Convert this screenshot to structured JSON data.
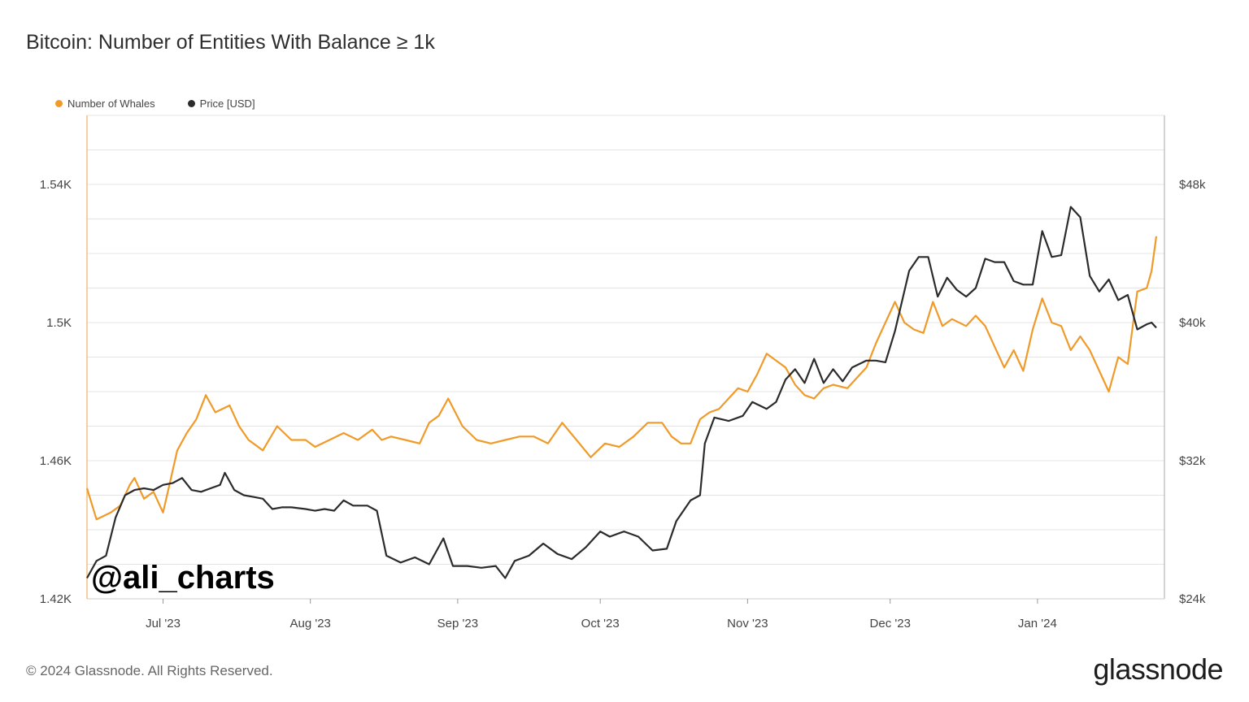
{
  "chart_data": {
    "type": "line",
    "title": "Bitcoin: Number of Entities With Balance ≥ 1k",
    "legend": {
      "placement": "top-left"
    },
    "grid": true,
    "x_tick_labels": [
      "Jul '23",
      "Aug '23",
      "Sep '23",
      "Oct '23",
      "Nov '23",
      "Dec '23",
      "Jan '24"
    ],
    "x_tick_dates": [
      "2023-07-01",
      "2023-08-01",
      "2023-09-01",
      "2023-10-01",
      "2023-11-01",
      "2023-12-01",
      "2024-01-01"
    ],
    "x_range": [
      "2023-06-15",
      "2024-01-26"
    ],
    "y_left": {
      "ticks": [
        "1.42K",
        "1.46K",
        "1.5K",
        "1.54K"
      ],
      "tick_values": [
        1420,
        1460,
        1500,
        1540
      ],
      "range": [
        1420,
        1560
      ]
    },
    "y_right": {
      "ticks": [
        "$24k",
        "$32k",
        "$40k",
        "$48k"
      ],
      "tick_values": [
        24000,
        32000,
        40000,
        48000
      ],
      "range": [
        24000,
        52000
      ]
    },
    "series": [
      {
        "name": "Number of Whales",
        "axis": "left",
        "color": "#f09a29",
        "points": [
          [
            "2023-06-15",
            1452
          ],
          [
            "2023-06-17",
            1443
          ],
          [
            "2023-06-20",
            1445
          ],
          [
            "2023-06-22",
            1447
          ],
          [
            "2023-06-24",
            1453
          ],
          [
            "2023-06-25",
            1455
          ],
          [
            "2023-06-27",
            1449
          ],
          [
            "2023-06-29",
            1451
          ],
          [
            "2023-07-01",
            1445
          ],
          [
            "2023-07-02",
            1451
          ],
          [
            "2023-07-04",
            1463
          ],
          [
            "2023-07-06",
            1468
          ],
          [
            "2023-07-08",
            1472
          ],
          [
            "2023-07-10",
            1479
          ],
          [
            "2023-07-12",
            1474
          ],
          [
            "2023-07-15",
            1476
          ],
          [
            "2023-07-17",
            1470
          ],
          [
            "2023-07-19",
            1466
          ],
          [
            "2023-07-22",
            1463
          ],
          [
            "2023-07-25",
            1470
          ],
          [
            "2023-07-28",
            1466
          ],
          [
            "2023-07-31",
            1466
          ],
          [
            "2023-08-02",
            1464
          ],
          [
            "2023-08-05",
            1466
          ],
          [
            "2023-08-08",
            1468
          ],
          [
            "2023-08-11",
            1466
          ],
          [
            "2023-08-14",
            1469
          ],
          [
            "2023-08-16",
            1466
          ],
          [
            "2023-08-18",
            1467
          ],
          [
            "2023-08-21",
            1466
          ],
          [
            "2023-08-24",
            1465
          ],
          [
            "2023-08-26",
            1471
          ],
          [
            "2023-08-28",
            1473
          ],
          [
            "2023-08-30",
            1478
          ],
          [
            "2023-09-02",
            1470
          ],
          [
            "2023-09-05",
            1466
          ],
          [
            "2023-09-08",
            1465
          ],
          [
            "2023-09-11",
            1466
          ],
          [
            "2023-09-14",
            1467
          ],
          [
            "2023-09-17",
            1467
          ],
          [
            "2023-09-20",
            1465
          ],
          [
            "2023-09-23",
            1471
          ],
          [
            "2023-09-26",
            1466
          ],
          [
            "2023-09-29",
            1461
          ],
          [
            "2023-10-02",
            1465
          ],
          [
            "2023-10-05",
            1464
          ],
          [
            "2023-10-08",
            1467
          ],
          [
            "2023-10-11",
            1471
          ],
          [
            "2023-10-14",
            1471
          ],
          [
            "2023-10-16",
            1467
          ],
          [
            "2023-10-18",
            1465
          ],
          [
            "2023-10-20",
            1465
          ],
          [
            "2023-10-22",
            1472
          ],
          [
            "2023-10-24",
            1474
          ],
          [
            "2023-10-26",
            1475
          ],
          [
            "2023-10-28",
            1478
          ],
          [
            "2023-10-30",
            1481
          ],
          [
            "2023-11-01",
            1480
          ],
          [
            "2023-11-03",
            1485
          ],
          [
            "2023-11-05",
            1491
          ],
          [
            "2023-11-07",
            1489
          ],
          [
            "2023-11-09",
            1487
          ],
          [
            "2023-11-11",
            1482
          ],
          [
            "2023-11-13",
            1479
          ],
          [
            "2023-11-15",
            1478
          ],
          [
            "2023-11-17",
            1481
          ],
          [
            "2023-11-19",
            1482
          ],
          [
            "2023-11-22",
            1481
          ],
          [
            "2023-11-24",
            1484
          ],
          [
            "2023-11-26",
            1487
          ],
          [
            "2023-11-28",
            1494
          ],
          [
            "2023-11-30",
            1500
          ],
          [
            "2023-12-02",
            1506
          ],
          [
            "2023-12-04",
            1500
          ],
          [
            "2023-12-06",
            1498
          ],
          [
            "2023-12-08",
            1497
          ],
          [
            "2023-12-10",
            1506
          ],
          [
            "2023-12-12",
            1499
          ],
          [
            "2023-12-14",
            1501
          ],
          [
            "2023-12-17",
            1499
          ],
          [
            "2023-12-19",
            1502
          ],
          [
            "2023-12-21",
            1499
          ],
          [
            "2023-12-23",
            1493
          ],
          [
            "2023-12-25",
            1487
          ],
          [
            "2023-12-27",
            1492
          ],
          [
            "2023-12-29",
            1486
          ],
          [
            "2023-12-31",
            1498
          ],
          [
            "2024-01-02",
            1507
          ],
          [
            "2024-01-04",
            1500
          ],
          [
            "2024-01-06",
            1499
          ],
          [
            "2024-01-08",
            1492
          ],
          [
            "2024-01-10",
            1496
          ],
          [
            "2024-01-12",
            1492
          ],
          [
            "2024-01-14",
            1486
          ],
          [
            "2024-01-16",
            1480
          ],
          [
            "2024-01-18",
            1490
          ],
          [
            "2024-01-20",
            1488
          ],
          [
            "2024-01-22",
            1509
          ],
          [
            "2024-01-24",
            1510
          ],
          [
            "2024-01-25",
            1515
          ],
          [
            "2024-01-26",
            1525
          ]
        ]
      },
      {
        "name": "Price [USD]",
        "axis": "right",
        "color": "#2b2b2b",
        "points": [
          [
            "2023-06-15",
            25200
          ],
          [
            "2023-06-17",
            26200
          ],
          [
            "2023-06-19",
            26500
          ],
          [
            "2023-06-21",
            28700
          ],
          [
            "2023-06-23",
            30000
          ],
          [
            "2023-06-25",
            30300
          ],
          [
            "2023-06-27",
            30400
          ],
          [
            "2023-06-29",
            30300
          ],
          [
            "2023-07-01",
            30600
          ],
          [
            "2023-07-03",
            30700
          ],
          [
            "2023-07-05",
            31000
          ],
          [
            "2023-07-07",
            30300
          ],
          [
            "2023-07-09",
            30200
          ],
          [
            "2023-07-11",
            30400
          ],
          [
            "2023-07-13",
            30600
          ],
          [
            "2023-07-14",
            31300
          ],
          [
            "2023-07-16",
            30300
          ],
          [
            "2023-07-18",
            30000
          ],
          [
            "2023-07-20",
            29900
          ],
          [
            "2023-07-22",
            29800
          ],
          [
            "2023-07-24",
            29200
          ],
          [
            "2023-07-26",
            29300
          ],
          [
            "2023-07-28",
            29300
          ],
          [
            "2023-07-31",
            29200
          ],
          [
            "2023-08-02",
            29100
          ],
          [
            "2023-08-04",
            29200
          ],
          [
            "2023-08-06",
            29100
          ],
          [
            "2023-08-08",
            29700
          ],
          [
            "2023-08-10",
            29400
          ],
          [
            "2023-08-13",
            29400
          ],
          [
            "2023-08-15",
            29100
          ],
          [
            "2023-08-17",
            26500
          ],
          [
            "2023-08-20",
            26100
          ],
          [
            "2023-08-23",
            26400
          ],
          [
            "2023-08-26",
            26000
          ],
          [
            "2023-08-29",
            27500
          ],
          [
            "2023-08-31",
            25900
          ],
          [
            "2023-09-03",
            25900
          ],
          [
            "2023-09-06",
            25800
          ],
          [
            "2023-09-09",
            25900
          ],
          [
            "2023-09-11",
            25200
          ],
          [
            "2023-09-13",
            26200
          ],
          [
            "2023-09-16",
            26500
          ],
          [
            "2023-09-19",
            27200
          ],
          [
            "2023-09-22",
            26600
          ],
          [
            "2023-09-25",
            26300
          ],
          [
            "2023-09-28",
            27000
          ],
          [
            "2023-10-01",
            27900
          ],
          [
            "2023-10-03",
            27600
          ],
          [
            "2023-10-06",
            27900
          ],
          [
            "2023-10-09",
            27600
          ],
          [
            "2023-10-12",
            26800
          ],
          [
            "2023-10-15",
            26900
          ],
          [
            "2023-10-17",
            28500
          ],
          [
            "2023-10-20",
            29700
          ],
          [
            "2023-10-22",
            30000
          ],
          [
            "2023-10-23",
            33000
          ],
          [
            "2023-10-25",
            34500
          ],
          [
            "2023-10-28",
            34300
          ],
          [
            "2023-10-31",
            34600
          ],
          [
            "2023-11-02",
            35400
          ],
          [
            "2023-11-05",
            35000
          ],
          [
            "2023-11-07",
            35400
          ],
          [
            "2023-11-09",
            36700
          ],
          [
            "2023-11-11",
            37300
          ],
          [
            "2023-11-13",
            36500
          ],
          [
            "2023-11-15",
            37900
          ],
          [
            "2023-11-17",
            36500
          ],
          [
            "2023-11-19",
            37300
          ],
          [
            "2023-11-21",
            36600
          ],
          [
            "2023-11-23",
            37400
          ],
          [
            "2023-11-26",
            37800
          ],
          [
            "2023-11-28",
            37800
          ],
          [
            "2023-11-30",
            37700
          ],
          [
            "2023-12-02",
            39500
          ],
          [
            "2023-12-05",
            43000
          ],
          [
            "2023-12-07",
            43800
          ],
          [
            "2023-12-09",
            43800
          ],
          [
            "2023-12-11",
            41500
          ],
          [
            "2023-12-13",
            42600
          ],
          [
            "2023-12-15",
            41900
          ],
          [
            "2023-12-17",
            41500
          ],
          [
            "2023-12-19",
            42000
          ],
          [
            "2023-12-21",
            43700
          ],
          [
            "2023-12-23",
            43500
          ],
          [
            "2023-12-25",
            43500
          ],
          [
            "2023-12-27",
            42400
          ],
          [
            "2023-12-29",
            42200
          ],
          [
            "2023-12-31",
            42200
          ],
          [
            "2024-01-02",
            45300
          ],
          [
            "2024-01-04",
            43800
          ],
          [
            "2024-01-06",
            43900
          ],
          [
            "2024-01-08",
            46700
          ],
          [
            "2024-01-10",
            46100
          ],
          [
            "2024-01-12",
            42700
          ],
          [
            "2024-01-14",
            41800
          ],
          [
            "2024-01-16",
            42500
          ],
          [
            "2024-01-18",
            41300
          ],
          [
            "2024-01-20",
            41600
          ],
          [
            "2024-01-22",
            39600
          ],
          [
            "2024-01-24",
            39900
          ],
          [
            "2024-01-25",
            40000
          ],
          [
            "2024-01-26",
            39700
          ]
        ]
      }
    ]
  },
  "watermark": "@ali_charts",
  "footer": {
    "copyright": "© 2024 Glassnode. All Rights Reserved.",
    "brand": "glassnode"
  }
}
